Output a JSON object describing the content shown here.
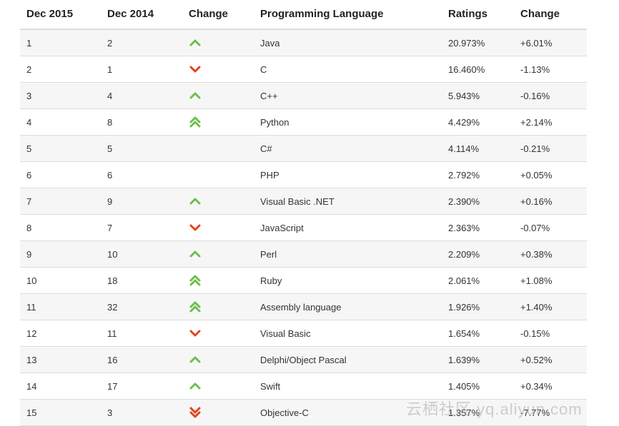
{
  "table": {
    "headers": [
      "Dec 2015",
      "Dec 2014",
      "Change",
      "Programming Language",
      "Ratings",
      "Change"
    ],
    "rows": [
      {
        "rank2015": "1",
        "rank2014": "2",
        "trend": "up",
        "language": "Java",
        "rating": "20.973%",
        "change": "+6.01%"
      },
      {
        "rank2015": "2",
        "rank2014": "1",
        "trend": "down",
        "language": "C",
        "rating": "16.460%",
        "change": "-1.13%"
      },
      {
        "rank2015": "3",
        "rank2014": "4",
        "trend": "up",
        "language": "C++",
        "rating": "5.943%",
        "change": "-0.16%"
      },
      {
        "rank2015": "4",
        "rank2014": "8",
        "trend": "double-up",
        "language": "Python",
        "rating": "4.429%",
        "change": "+2.14%"
      },
      {
        "rank2015": "5",
        "rank2014": "5",
        "trend": "none",
        "language": "C#",
        "rating": "4.114%",
        "change": "-0.21%"
      },
      {
        "rank2015": "6",
        "rank2014": "6",
        "trend": "none",
        "language": "PHP",
        "rating": "2.792%",
        "change": "+0.05%"
      },
      {
        "rank2015": "7",
        "rank2014": "9",
        "trend": "up",
        "language": "Visual Basic .NET",
        "rating": "2.390%",
        "change": "+0.16%"
      },
      {
        "rank2015": "8",
        "rank2014": "7",
        "trend": "down",
        "language": "JavaScript",
        "rating": "2.363%",
        "change": "-0.07%"
      },
      {
        "rank2015": "9",
        "rank2014": "10",
        "trend": "up",
        "language": "Perl",
        "rating": "2.209%",
        "change": "+0.38%"
      },
      {
        "rank2015": "10",
        "rank2014": "18",
        "trend": "double-up",
        "language": "Ruby",
        "rating": "2.061%",
        "change": "+1.08%"
      },
      {
        "rank2015": "11",
        "rank2014": "32",
        "trend": "double-up",
        "language": "Assembly language",
        "rating": "1.926%",
        "change": "+1.40%"
      },
      {
        "rank2015": "12",
        "rank2014": "11",
        "trend": "down",
        "language": "Visual Basic",
        "rating": "1.654%",
        "change": "-0.15%"
      },
      {
        "rank2015": "13",
        "rank2014": "16",
        "trend": "up",
        "language": "Delphi/Object Pascal",
        "rating": "1.639%",
        "change": "+0.52%"
      },
      {
        "rank2015": "14",
        "rank2014": "17",
        "trend": "up",
        "language": "Swift",
        "rating": "1.405%",
        "change": "+0.34%"
      },
      {
        "rank2015": "15",
        "rank2014": "3",
        "trend": "double-down",
        "language": "Objective-C",
        "rating": "1.357%",
        "change": "-7.77%"
      }
    ]
  },
  "colors": {
    "up": "#6cc04a",
    "down": "#e2431e"
  },
  "icons": {
    "up": "chevron-up-icon",
    "down": "chevron-down-icon",
    "double-up": "double-chevron-up-icon",
    "double-down": "double-chevron-down-icon"
  },
  "watermark": "云栖社区 yq.aliyun.com"
}
